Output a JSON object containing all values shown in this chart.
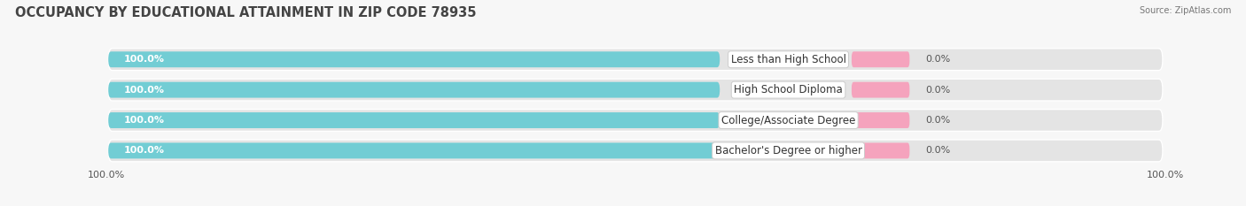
{
  "title": "OCCUPANCY BY EDUCATIONAL ATTAINMENT IN ZIP CODE 78935",
  "source": "Source: ZipAtlas.com",
  "categories": [
    "Less than High School",
    "High School Diploma",
    "College/Associate Degree",
    "Bachelor's Degree or higher"
  ],
  "owner_values": [
    100.0,
    100.0,
    100.0,
    100.0
  ],
  "renter_values": [
    0.0,
    0.0,
    0.0,
    0.0
  ],
  "owner_color": "#72cdd4",
  "renter_color": "#f5a3bd",
  "bar_track_color": "#e4e4e4",
  "title_fontsize": 10.5,
  "label_fontsize": 8.5,
  "value_fontsize": 8,
  "source_fontsize": 7,
  "legend_fontsize": 8,
  "fig_bg_color": "#f7f7f7",
  "bar_bg_color": "#ebebeb",
  "left_pct_label": "100.0%",
  "right_pct_label": "100.0%",
  "bottom_left_label": "100.0%",
  "bottom_right_label": "100.0%"
}
